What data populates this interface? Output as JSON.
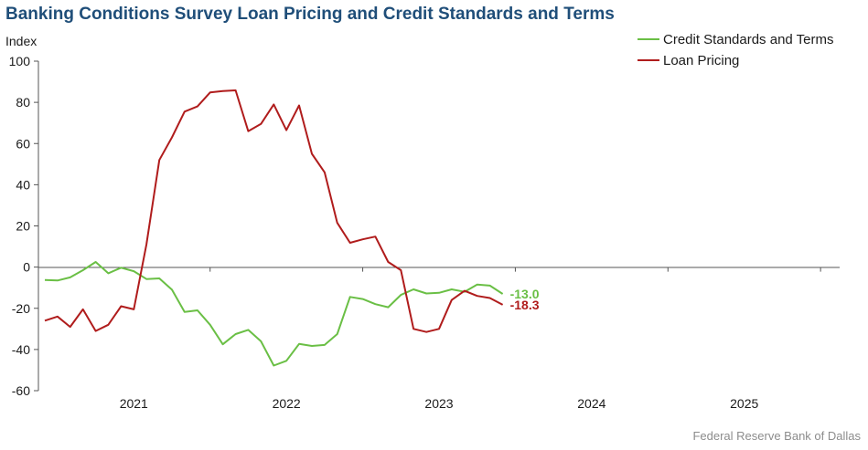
{
  "title": "Banking Conditions Survey Loan Pricing and Credit Standards and Terms",
  "source": "Federal Reserve Bank of Dallas",
  "chart_data": {
    "type": "line",
    "ylabel": "Index",
    "ylim": [
      -60,
      100
    ],
    "yticks": [
      -60,
      -40,
      -20,
      0,
      20,
      40,
      60,
      80,
      100
    ],
    "xlim": [
      2020.5,
      2025.75
    ],
    "xticks": [
      {
        "label": "2021",
        "value": 2021.125
      },
      {
        "label": "2022",
        "value": 2022.125
      },
      {
        "label": "2023",
        "value": 2023.125
      },
      {
        "label": "2024",
        "value": 2024.125
      },
      {
        "label": "2025",
        "value": 2025.125
      }
    ],
    "x": [
      2020.542,
      2020.625,
      2020.708,
      2020.792,
      2020.875,
      2020.958,
      2021.042,
      2021.125,
      2021.208,
      2021.292,
      2021.375,
      2021.458,
      2021.542,
      2021.625,
      2021.708,
      2021.792,
      2021.875,
      2021.958,
      2022.042,
      2022.125,
      2022.208,
      2022.292,
      2022.375,
      2022.458,
      2022.542,
      2022.625,
      2022.708,
      2022.792,
      2022.875,
      2022.958,
      2023.042,
      2023.125,
      2023.208,
      2023.292,
      2023.375,
      2023.458,
      2023.542,
      2023.625,
      2023.708,
      2023.792,
      2023.875,
      2023.958,
      2024.042,
      2024.125,
      2024.208,
      2024.292,
      2024.375,
      2024.458,
      2024.542,
      2024.625,
      2024.708,
      2024.792,
      2024.875,
      2024.958,
      2025.042,
      2025.125,
      2025.208,
      2025.292,
      2025.375,
      2025.458
    ],
    "series": [
      {
        "name": "Credit Standards and Terms",
        "color": "#6abf45",
        "end_label": "-13.0",
        "points": [
          [
            2020.542,
            -6.3
          ],
          [
            2020.625,
            -6.5
          ],
          [
            2020.708,
            -5.0
          ],
          [
            2020.792,
            -1.5
          ],
          [
            2020.875,
            2.5
          ],
          [
            2020.958,
            -3.0
          ],
          [
            2021.042,
            -0.3
          ],
          [
            2021.125,
            -2.0
          ],
          [
            2021.208,
            -5.8
          ],
          [
            2021.292,
            -5.5
          ],
          [
            2021.375,
            -11.0
          ],
          [
            2021.458,
            -21.8
          ],
          [
            2021.542,
            -21.0
          ],
          [
            2021.625,
            -28.0
          ],
          [
            2021.708,
            -37.5
          ],
          [
            2021.792,
            -32.5
          ],
          [
            2021.875,
            -30.5
          ],
          [
            2021.958,
            -36.0
          ],
          [
            2022.042,
            -47.8
          ],
          [
            2022.125,
            -45.5
          ],
          [
            2022.208,
            -37.3
          ],
          [
            2022.292,
            -38.3
          ],
          [
            2022.375,
            -37.8
          ],
          [
            2022.458,
            -32.5
          ],
          [
            2022.542,
            -14.5
          ],
          [
            2022.625,
            -15.5
          ],
          [
            2022.708,
            -18.0
          ],
          [
            2022.792,
            -19.5
          ],
          [
            2022.875,
            -13.5
          ],
          [
            2022.958,
            -10.8
          ],
          [
            2023.042,
            -12.8
          ],
          [
            2023.125,
            -12.5
          ],
          [
            2023.208,
            -10.8
          ],
          [
            2023.292,
            -12.0
          ],
          [
            2023.375,
            -8.5
          ],
          [
            2023.458,
            -9.0
          ],
          [
            2023.542,
            -13.0
          ]
        ]
      },
      {
        "name": "Loan Pricing",
        "color": "#b01c1c",
        "end_label": "-18.3",
        "points": [
          [
            2020.542,
            -26.0
          ],
          [
            2020.625,
            -24.0
          ],
          [
            2020.708,
            -29.0
          ],
          [
            2020.792,
            -20.5
          ],
          [
            2020.875,
            -31.0
          ],
          [
            2020.958,
            -28.0
          ],
          [
            2021.042,
            -19.0
          ],
          [
            2021.125,
            -20.5
          ],
          [
            2021.208,
            11.0
          ],
          [
            2021.292,
            52.0
          ],
          [
            2021.375,
            63.0
          ],
          [
            2021.458,
            75.5
          ],
          [
            2021.542,
            78.0
          ],
          [
            2021.625,
            84.8
          ],
          [
            2021.708,
            85.5
          ],
          [
            2021.792,
            85.8
          ],
          [
            2021.875,
            66.0
          ],
          [
            2021.958,
            69.5
          ],
          [
            2022.042,
            79.0
          ],
          [
            2022.125,
            66.5
          ],
          [
            2022.208,
            78.5
          ],
          [
            2022.292,
            55.0
          ],
          [
            2022.375,
            46.0
          ],
          [
            2022.458,
            21.5
          ],
          [
            2022.542,
            11.8
          ],
          [
            2022.625,
            13.5
          ],
          [
            2022.708,
            14.8
          ],
          [
            2022.792,
            2.5
          ],
          [
            2022.875,
            -1.5
          ],
          [
            2022.958,
            -30.0
          ],
          [
            2023.042,
            -31.5
          ],
          [
            2023.125,
            -30.0
          ],
          [
            2023.208,
            -16.0
          ],
          [
            2023.292,
            -11.5
          ],
          [
            2023.375,
            -14.0
          ],
          [
            2023.458,
            -15.0
          ],
          [
            2023.542,
            -18.3
          ]
        ]
      }
    ],
    "legend_position": "top-right",
    "grid": false
  }
}
